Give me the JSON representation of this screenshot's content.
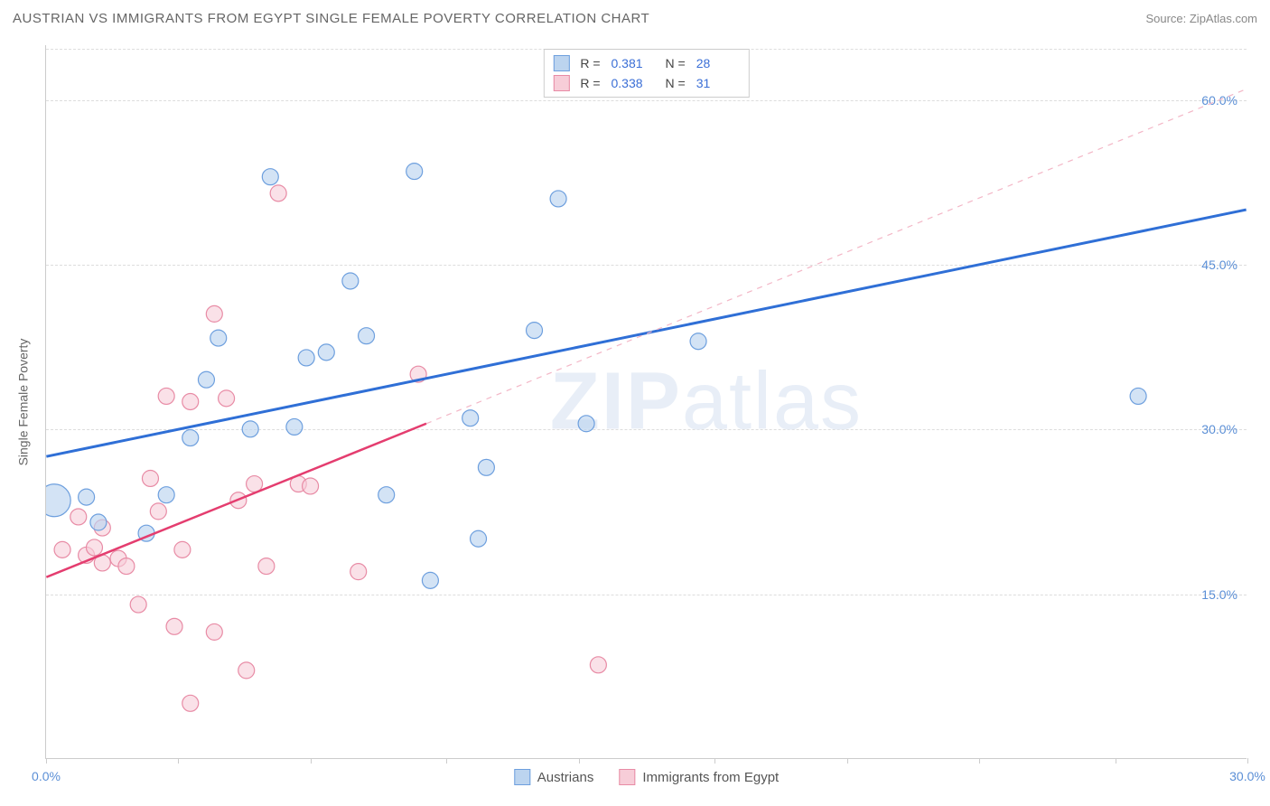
{
  "header": {
    "title": "AUSTRIAN VS IMMIGRANTS FROM EGYPT SINGLE FEMALE POVERTY CORRELATION CHART",
    "source": "Source: ZipAtlas.com"
  },
  "watermark": {
    "part1": "ZIP",
    "part2": "atlas"
  },
  "chart": {
    "type": "scatter",
    "ylabel": "Single Female Poverty",
    "background_color": "#ffffff",
    "grid_color": "#dddddd",
    "axis_color": "#cccccc",
    "tick_label_color": "#5b8fd6",
    "label_color": "#666666",
    "label_fontsize": 14,
    "tick_fontsize": 14,
    "xlim": [
      0,
      30
    ],
    "ylim": [
      0,
      65
    ],
    "xticks": [
      0,
      3.3,
      6.6,
      10,
      13.3,
      16.7,
      20,
      23.3,
      26.7,
      30
    ],
    "xtick_labels": {
      "0": "0.0%",
      "30": "30.0%"
    },
    "yticks": [
      15,
      30,
      45,
      60
    ],
    "ytick_labels": {
      "15": "15.0%",
      "30": "30.0%",
      "45": "45.0%",
      "60": "60.0%"
    },
    "series": [
      {
        "name": "Austrians",
        "marker_fill": "#bcd4ef",
        "marker_stroke": "#6d9fde",
        "marker_fill_opacity": 0.65,
        "marker_radius": 9,
        "line_color": "#2f6fd6",
        "line_width": 3,
        "line_dash": "none",
        "R": "0.381",
        "N": "28",
        "trend": {
          "x1": 0,
          "y1": 27.5,
          "x2": 30,
          "y2": 50
        },
        "trend_extent": [
          0,
          30
        ],
        "points": [
          {
            "x": 0.2,
            "y": 23.5,
            "r": 18
          },
          {
            "x": 1.0,
            "y": 23.8,
            "r": 9
          },
          {
            "x": 1.3,
            "y": 21.5,
            "r": 9
          },
          {
            "x": 2.5,
            "y": 20.5,
            "r": 9
          },
          {
            "x": 3.0,
            "y": 24.0,
            "r": 9
          },
          {
            "x": 3.6,
            "y": 29.2,
            "r": 9
          },
          {
            "x": 4.0,
            "y": 34.5,
            "r": 9
          },
          {
            "x": 4.3,
            "y": 38.3,
            "r": 9
          },
          {
            "x": 5.1,
            "y": 30.0,
            "r": 9
          },
          {
            "x": 5.6,
            "y": 53.0,
            "r": 9
          },
          {
            "x": 6.2,
            "y": 30.2,
            "r": 9
          },
          {
            "x": 6.5,
            "y": 36.5,
            "r": 9
          },
          {
            "x": 7.0,
            "y": 37.0,
            "r": 9
          },
          {
            "x": 7.6,
            "y": 43.5,
            "r": 9
          },
          {
            "x": 8.0,
            "y": 38.5,
            "r": 9
          },
          {
            "x": 8.5,
            "y": 24.0,
            "r": 9
          },
          {
            "x": 9.2,
            "y": 53.5,
            "r": 9
          },
          {
            "x": 9.6,
            "y": 16.2,
            "r": 9
          },
          {
            "x": 10.8,
            "y": 20.0,
            "r": 9
          },
          {
            "x": 10.6,
            "y": 31.0,
            "r": 9
          },
          {
            "x": 11.0,
            "y": 26.5,
            "r": 9
          },
          {
            "x": 12.8,
            "y": 51.0,
            "r": 9
          },
          {
            "x": 12.2,
            "y": 39.0,
            "r": 9
          },
          {
            "x": 13.5,
            "y": 30.5,
            "r": 9
          },
          {
            "x": 16.3,
            "y": 38.0,
            "r": 9
          },
          {
            "x": 27.3,
            "y": 33.0,
            "r": 9
          }
        ]
      },
      {
        "name": "Immigrants from Egypt",
        "marker_fill": "#f7cdd8",
        "marker_stroke": "#e88ba5",
        "marker_fill_opacity": 0.6,
        "marker_radius": 9,
        "line_color": "#e43d6f",
        "line_width": 2.5,
        "line_dash": "none",
        "dash_color": "#f3b6c6",
        "R": "0.338",
        "N": "31",
        "trend": {
          "x1": 0,
          "y1": 16.5,
          "x2": 9.5,
          "y2": 30.5
        },
        "trend_dash": {
          "x1": 9.5,
          "y1": 30.5,
          "x2": 30,
          "y2": 61
        },
        "points": [
          {
            "x": 0.4,
            "y": 19.0,
            "r": 9
          },
          {
            "x": 0.8,
            "y": 22.0,
            "r": 9
          },
          {
            "x": 1.0,
            "y": 18.5,
            "r": 9
          },
          {
            "x": 1.2,
            "y": 19.2,
            "r": 9
          },
          {
            "x": 1.4,
            "y": 21.0,
            "r": 9
          },
          {
            "x": 1.4,
            "y": 17.8,
            "r": 9
          },
          {
            "x": 1.8,
            "y": 18.2,
            "r": 9
          },
          {
            "x": 2.0,
            "y": 17.5,
            "r": 9
          },
          {
            "x": 2.3,
            "y": 14.0,
            "r": 9
          },
          {
            "x": 2.6,
            "y": 25.5,
            "r": 9
          },
          {
            "x": 2.8,
            "y": 22.5,
            "r": 9
          },
          {
            "x": 3.0,
            "y": 33.0,
            "r": 9
          },
          {
            "x": 3.2,
            "y": 12.0,
            "r": 9
          },
          {
            "x": 3.4,
            "y": 19.0,
            "r": 9
          },
          {
            "x": 3.6,
            "y": 5.0,
            "r": 9
          },
          {
            "x": 3.6,
            "y": 32.5,
            "r": 9
          },
          {
            "x": 4.2,
            "y": 40.5,
            "r": 9
          },
          {
            "x": 4.2,
            "y": 11.5,
            "r": 9
          },
          {
            "x": 4.5,
            "y": 32.8,
            "r": 9
          },
          {
            "x": 4.8,
            "y": 23.5,
            "r": 9
          },
          {
            "x": 5.0,
            "y": 8.0,
            "r": 9
          },
          {
            "x": 5.2,
            "y": 25.0,
            "r": 9
          },
          {
            "x": 5.5,
            "y": 17.5,
            "r": 9
          },
          {
            "x": 5.8,
            "y": 51.5,
            "r": 9
          },
          {
            "x": 6.3,
            "y": 25.0,
            "r": 9
          },
          {
            "x": 6.6,
            "y": 24.8,
            "r": 9
          },
          {
            "x": 7.8,
            "y": 17.0,
            "r": 9
          },
          {
            "x": 9.3,
            "y": 35.0,
            "r": 9
          },
          {
            "x": 13.8,
            "y": 8.5,
            "r": 9
          }
        ]
      }
    ],
    "legend_bottom": [
      {
        "label": "Austrians",
        "fill": "#bcd4ef",
        "stroke": "#6d9fde"
      },
      {
        "label": "Immigrants from Egypt",
        "fill": "#f7cdd8",
        "stroke": "#e88ba5"
      }
    ]
  }
}
